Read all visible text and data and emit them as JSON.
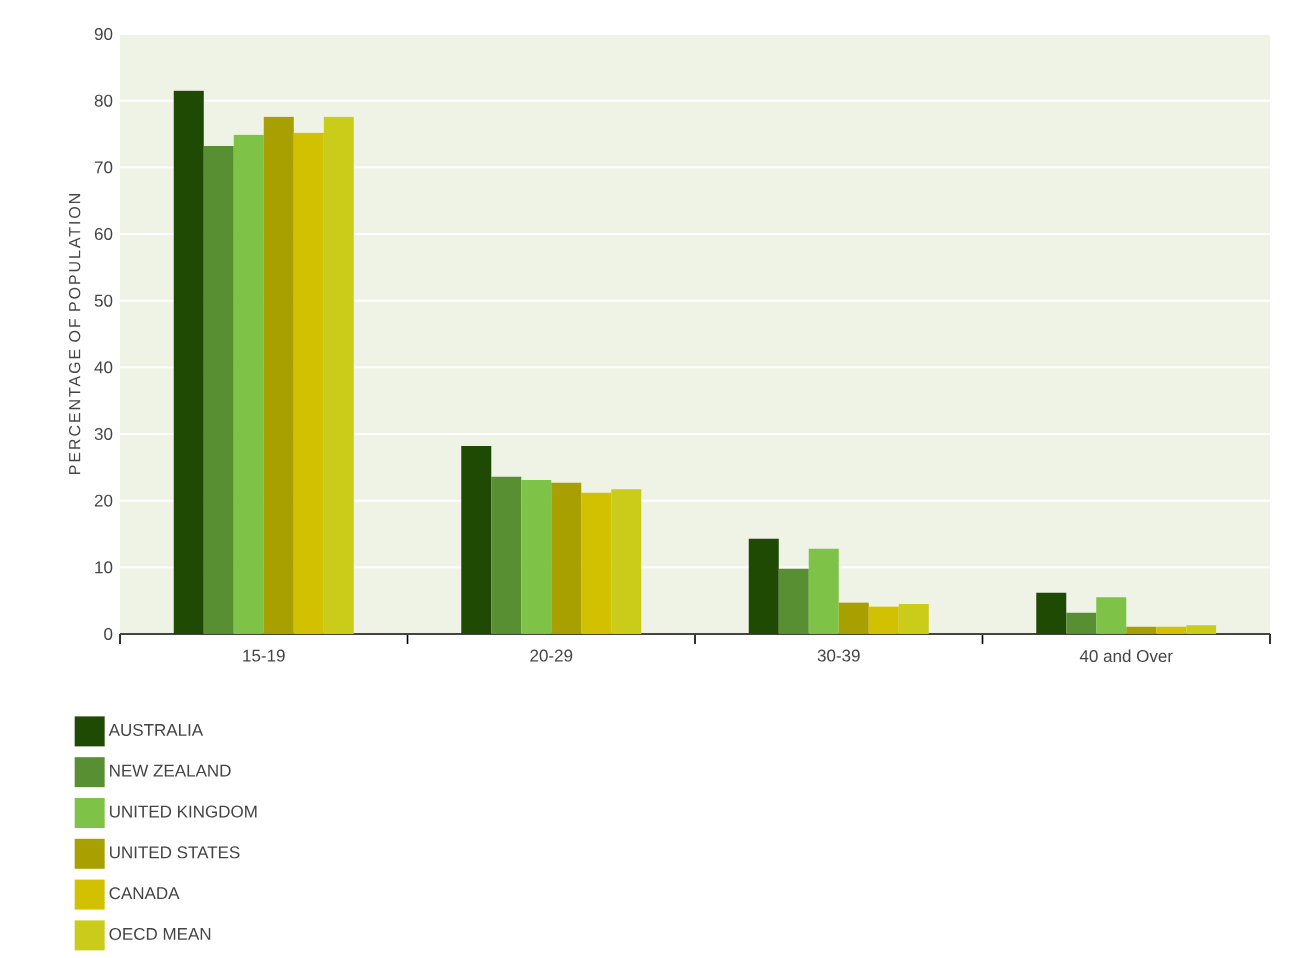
{
  "chart_data": {
    "type": "bar",
    "ylabel": "PERCENTAGE OF POPULATION",
    "categories": [
      "15-19",
      "20-29",
      "30-39",
      "40 and Over"
    ],
    "series": [
      {
        "name": "AUSTRALIA",
        "color": "#1f4a04",
        "values": [
          81.5,
          28.2,
          14.3,
          6.2
        ]
      },
      {
        "name": "NEW ZEALAND",
        "color": "#588f33",
        "values": [
          73.2,
          23.6,
          9.8,
          3.2
        ]
      },
      {
        "name": "UNITED KINGDOM",
        "color": "#7ec247",
        "values": [
          74.9,
          23.1,
          12.8,
          5.5
        ]
      },
      {
        "name": "UNITED STATES",
        "color": "#a89f00",
        "values": [
          77.6,
          22.7,
          4.7,
          1.1
        ]
      },
      {
        "name": "CANADA",
        "color": "#d2c100",
        "values": [
          75.2,
          21.2,
          4.1,
          1.1
        ]
      },
      {
        "name": "OECD MEAN",
        "color": "#cbcb19",
        "values": [
          77.6,
          21.7,
          4.5,
          1.3
        ]
      }
    ],
    "ylim": [
      0,
      90
    ],
    "yticks": [
      0,
      10,
      20,
      30,
      40,
      50,
      60,
      70,
      80,
      90
    ],
    "grid": "y",
    "legend": "bottom left"
  }
}
